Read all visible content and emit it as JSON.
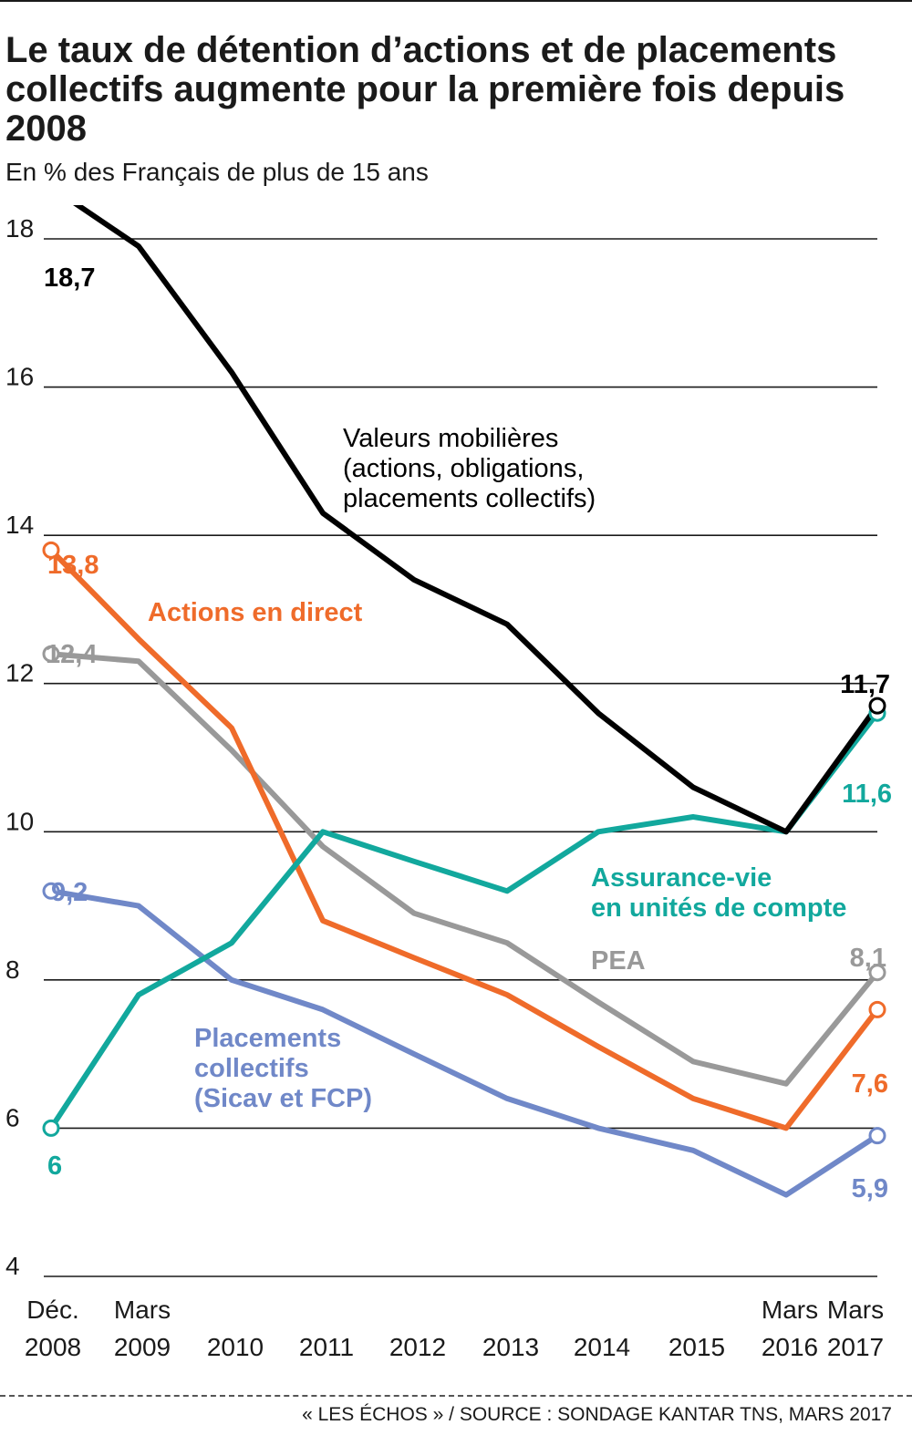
{
  "header": {
    "title": "Le taux de détention d’actions et de placements collectifs augmente pour la première fois depuis 2008",
    "subtitle": "En % des Français de plus de 15 ans"
  },
  "footer": {
    "source": "« LES ÉCHOS » / SOURCE : SONDAGE KANTAR TNS, MARS 2017"
  },
  "chart_data": {
    "type": "line",
    "title": "Le taux de détention d’actions et de placements collectifs augmente pour la première fois depuis 2008",
    "subtitle": "En % des Français de plus de 15 ans",
    "xlabel": "",
    "ylabel": "",
    "ylim": [
      4,
      18
    ],
    "yticks": [
      18,
      16,
      14,
      12,
      10,
      8,
      6,
      4
    ],
    "grid": "horizontal",
    "legend": "inline labels",
    "categories": [
      [
        "Déc.",
        "2008"
      ],
      [
        "Mars",
        "2009"
      ],
      [
        "",
        "2010"
      ],
      [
        "",
        "2011"
      ],
      [
        "",
        "2012"
      ],
      [
        "",
        "2013"
      ],
      [
        "",
        "2014"
      ],
      [
        "",
        "2015"
      ],
      [
        "Mars",
        "2016"
      ],
      [
        "Mars",
        "2017"
      ]
    ],
    "series": [
      {
        "name": "Valeurs mobilières (actions, obligations, placements collectifs)",
        "label_lines": [
          "Valeurs mobilières",
          "(actions, obligations,",
          "placements collectifs)"
        ],
        "color": "#000000",
        "values": [
          18.7,
          17.9,
          16.2,
          14.3,
          13.4,
          12.8,
          11.6,
          10.6,
          10.0,
          11.7
        ],
        "first_label": "18,7",
        "last_label": "11,7"
      },
      {
        "name": "Actions en direct",
        "label_lines": [
          "Actions en direct"
        ],
        "color": "#ef6b2a",
        "values": [
          13.8,
          12.6,
          11.4,
          8.8,
          8.3,
          7.8,
          7.1,
          6.4,
          6.0,
          7.6
        ],
        "first_label": "13,8",
        "last_label": "7,6"
      },
      {
        "name": "PEA",
        "label_lines": [
          "PEA"
        ],
        "color": "#999999",
        "values": [
          12.4,
          12.3,
          11.1,
          9.8,
          8.9,
          8.5,
          7.7,
          6.9,
          6.6,
          8.1
        ],
        "first_label": "12,4",
        "last_label": "8,1"
      },
      {
        "name": "Assurance-vie en unités de compte",
        "label_lines": [
          "Assurance-vie",
          "en unités de compte"
        ],
        "color": "#12a89d",
        "values": [
          6.0,
          7.8,
          8.5,
          10.0,
          9.6,
          9.2,
          10.0,
          10.2,
          10.0,
          11.6
        ],
        "first_label": "6",
        "last_label": "11,6"
      },
      {
        "name": "Placements collectifs (Sicav et FCP)",
        "label_lines": [
          "Placements",
          "collectifs",
          "(Sicav et FCP)"
        ],
        "color": "#7088c8",
        "values": [
          9.2,
          9.0,
          8.0,
          7.6,
          7.0,
          6.4,
          6.0,
          5.7,
          5.1,
          5.9
        ],
        "first_label": "9,2",
        "last_label": "5,9"
      }
    ]
  }
}
